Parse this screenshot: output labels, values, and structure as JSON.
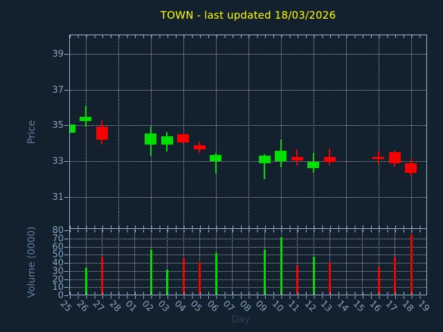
{
  "title": {
    "text": "TOWN - last updated 18/03/2026"
  },
  "colors": {
    "background": "#13212f",
    "title": "#ffff00",
    "spine": "#9dbbd9",
    "grid": "#bec6ce",
    "tick_label": "#85a3c2",
    "axis_label": "#5d7f9f",
    "xlabel": "#24405d",
    "up": "#00e000",
    "down": "#f70000"
  },
  "chart_data": {
    "type": "candlestick",
    "title": "TOWN - last updated 18/03/2026",
    "xlabel": "Day",
    "x_categories": [
      "25",
      "26",
      "27",
      "28",
      "01",
      "02",
      "03",
      "04",
      "05",
      "06",
      "07",
      "08",
      "09",
      "10",
      "11",
      "12",
      "13",
      "14",
      "15",
      "16",
      "17",
      "18",
      "19"
    ],
    "legend": "none",
    "grid": true,
    "price_panel": {
      "ylabel": "Price",
      "ylim": [
        29.2,
        40.1
      ],
      "yticks": [
        31,
        33,
        35,
        37,
        39
      ],
      "x_gridline_categories": [
        "26",
        "28",
        "02",
        "04",
        "06",
        "08",
        "10",
        "12",
        "14",
        "16",
        "18"
      ]
    },
    "volume_panel": {
      "ylabel": "Volume (0000)",
      "ylim": [
        0,
        82
      ],
      "yticks": [
        0,
        10,
        20,
        30,
        40,
        50,
        60,
        70,
        80
      ],
      "gridline_yticks": [
        10,
        20,
        30,
        40,
        50,
        60,
        70
      ],
      "x_grid_every_day": true
    },
    "candles": [
      {
        "day": "25",
        "open": 34.6,
        "high": 35.1,
        "low": 34.55,
        "close": 35.05,
        "volume": null
      },
      {
        "day": "26",
        "open": 35.25,
        "high": 36.1,
        "low": 34.95,
        "close": 35.5,
        "volume": 34
      },
      {
        "day": "27",
        "open": 34.95,
        "high": 35.3,
        "low": 33.95,
        "close": 34.2,
        "volume": 48
      },
      {
        "day": "02",
        "open": 33.95,
        "high": 34.95,
        "low": 33.3,
        "close": 34.55,
        "volume": 56
      },
      {
        "day": "03",
        "open": 33.95,
        "high": 34.65,
        "low": 33.55,
        "close": 34.4,
        "volume": 32
      },
      {
        "day": "04",
        "open": 34.5,
        "high": 34.55,
        "low": 34.0,
        "close": 34.05,
        "volume": 46
      },
      {
        "day": "05",
        "open": 33.9,
        "high": 34.1,
        "low": 33.45,
        "close": 33.65,
        "volume": 41
      },
      {
        "day": "06",
        "open": 33.0,
        "high": 33.45,
        "low": 32.3,
        "close": 33.35,
        "volume": 52
      },
      {
        "day": "09",
        "open": 32.9,
        "high": 33.4,
        "low": 32.0,
        "close": 33.3,
        "volume": 56
      },
      {
        "day": "10",
        "open": 33.0,
        "high": 34.2,
        "low": 32.65,
        "close": 33.6,
        "volume": 72
      },
      {
        "day": "11",
        "open": 33.25,
        "high": 33.65,
        "low": 32.75,
        "close": 33.05,
        "volume": 37
      },
      {
        "day": "12",
        "open": 32.6,
        "high": 33.45,
        "low": 32.35,
        "close": 32.95,
        "volume": 48
      },
      {
        "day": "13",
        "open": 33.25,
        "high": 33.7,
        "low": 32.75,
        "close": 32.95,
        "volume": 40
      },
      {
        "day": "16",
        "open": 33.25,
        "high": 33.6,
        "low": 32.85,
        "close": 33.1,
        "volume": 35
      },
      {
        "day": "17",
        "open": 33.5,
        "high": 33.6,
        "low": 32.7,
        "close": 32.9,
        "volume": 47
      },
      {
        "day": "18",
        "open": 32.9,
        "high": 33.15,
        "low": 32.15,
        "close": 32.35,
        "volume": 75
      }
    ]
  }
}
